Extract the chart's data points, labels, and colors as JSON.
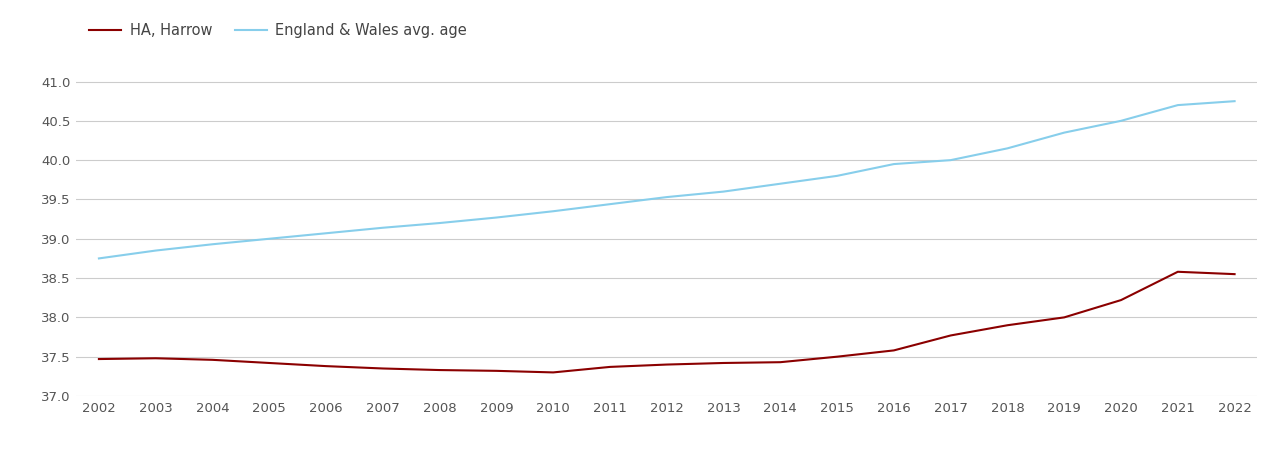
{
  "years": [
    2002,
    2003,
    2004,
    2005,
    2006,
    2007,
    2008,
    2009,
    2010,
    2011,
    2012,
    2013,
    2014,
    2015,
    2016,
    2017,
    2018,
    2019,
    2020,
    2021,
    2022
  ],
  "harrow": [
    37.47,
    37.48,
    37.46,
    37.42,
    37.38,
    37.35,
    37.33,
    37.32,
    37.3,
    37.37,
    37.4,
    37.42,
    37.43,
    37.5,
    37.58,
    37.77,
    37.9,
    38.0,
    38.22,
    38.58,
    38.55
  ],
  "england_wales": [
    38.75,
    38.85,
    38.93,
    39.0,
    39.07,
    39.14,
    39.2,
    39.27,
    39.35,
    39.44,
    39.53,
    39.6,
    39.7,
    39.8,
    39.95,
    40.0,
    40.15,
    40.35,
    40.5,
    40.7,
    40.75
  ],
  "harrow_color": "#8B0000",
  "ew_color": "#87CEEB",
  "harrow_label": "HA, Harrow",
  "ew_label": "England & Wales avg. age",
  "ylim": [
    37.0,
    41.35
  ],
  "yticks": [
    37.0,
    37.5,
    38.0,
    38.5,
    39.0,
    39.5,
    40.0,
    40.5,
    41.0
  ],
  "bg_color": "#ffffff",
  "grid_color": "#cccccc",
  "line_width": 1.5,
  "legend_fontsize": 10.5,
  "tick_fontsize": 9.5,
  "tick_color": "#555555"
}
